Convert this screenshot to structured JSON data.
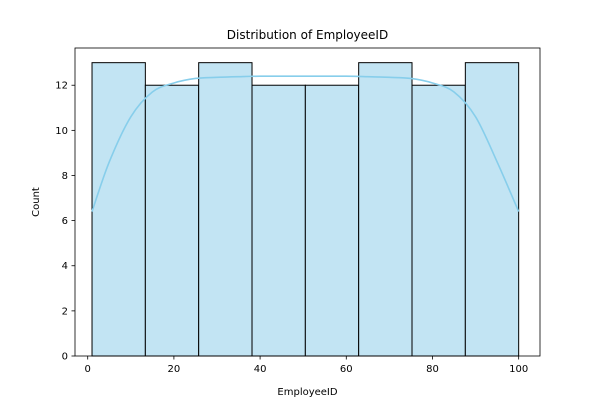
{
  "chart_data": {
    "type": "histogram",
    "title": "Distribution of EmployeeID",
    "xlabel": "EmployeeID",
    "ylabel": "Count",
    "xlim": [
      -2.95,
      104.95
    ],
    "ylim": [
      0,
      13.65
    ],
    "xticks": [
      0,
      20,
      40,
      60,
      80,
      100
    ],
    "yticks": [
      0,
      2,
      4,
      6,
      8,
      10,
      12
    ],
    "bins": [
      {
        "start": 1.0,
        "end": 13.375,
        "count": 13
      },
      {
        "start": 13.375,
        "end": 25.75,
        "count": 12
      },
      {
        "start": 25.75,
        "end": 38.125,
        "count": 13
      },
      {
        "start": 38.125,
        "end": 50.5,
        "count": 12
      },
      {
        "start": 50.5,
        "end": 62.875,
        "count": 12
      },
      {
        "start": 62.875,
        "end": 75.25,
        "count": 13
      },
      {
        "start": 75.25,
        "end": 87.625,
        "count": 12
      },
      {
        "start": 87.625,
        "end": 100.0,
        "count": 13
      }
    ],
    "kde": {
      "x": [
        1,
        5,
        10,
        15,
        20,
        25,
        30,
        35,
        40,
        50,
        60,
        65,
        70,
        75,
        80,
        85,
        90,
        95,
        100
      ],
      "y": [
        6.4,
        8.6,
        10.6,
        11.7,
        12.1,
        12.3,
        12.35,
        12.38,
        12.4,
        12.4,
        12.4,
        12.38,
        12.35,
        12.3,
        12.1,
        11.7,
        10.6,
        8.6,
        6.4
      ]
    },
    "bar_color": "#c2e4f3",
    "bar_edge_color": "#000000",
    "kde_color": "#87ceeb",
    "grid": false,
    "legend": "none"
  }
}
